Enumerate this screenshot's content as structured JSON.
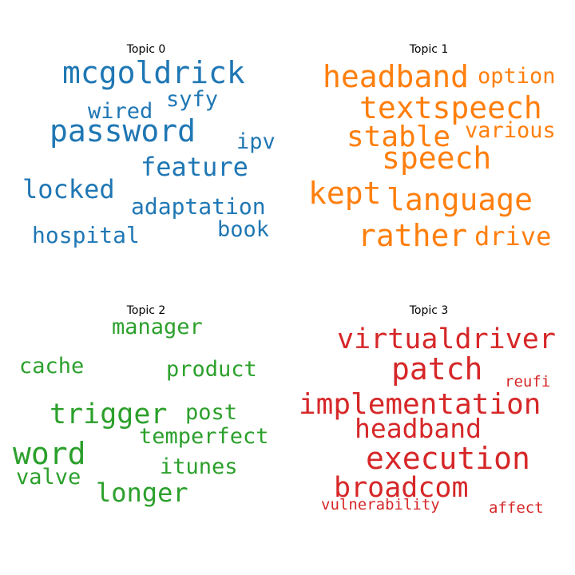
{
  "chart_data": [
    {
      "type": "wordcloud",
      "title": "Topic 0",
      "color": "#1f77b4",
      "words": [
        {
          "text": "mcgoldrick",
          "weight": 0.88
        },
        {
          "text": "password",
          "weight": 0.92
        },
        {
          "text": "syfy",
          "weight": 0.62
        },
        {
          "text": "wired",
          "weight": 0.65
        },
        {
          "text": "feature",
          "weight": 0.72
        },
        {
          "text": "ipv",
          "weight": 0.6
        },
        {
          "text": "locked",
          "weight": 0.72
        },
        {
          "text": "adaptation",
          "weight": 0.66
        },
        {
          "text": "hospital",
          "weight": 0.65
        },
        {
          "text": "book",
          "weight": 0.6
        }
      ]
    },
    {
      "type": "wordcloud",
      "title": "Topic 1",
      "color": "#ff7f0e",
      "words": [
        {
          "text": "headband",
          "weight": 0.88
        },
        {
          "text": "option",
          "weight": 0.62
        },
        {
          "text": "textspeech",
          "weight": 0.88
        },
        {
          "text": "stable",
          "weight": 0.85
        },
        {
          "text": "various",
          "weight": 0.6
        },
        {
          "text": "speech",
          "weight": 0.9
        },
        {
          "text": "kept",
          "weight": 0.88
        },
        {
          "text": "language",
          "weight": 0.9
        },
        {
          "text": "rather",
          "weight": 0.88
        },
        {
          "text": "drive",
          "weight": 0.75
        }
      ]
    },
    {
      "type": "wordcloud",
      "title": "Topic 2",
      "color": "#2ca02c",
      "words": [
        {
          "text": "manager",
          "weight": 0.6
        },
        {
          "text": "cache",
          "weight": 0.6
        },
        {
          "text": "product",
          "weight": 0.62
        },
        {
          "text": "trigger",
          "weight": 0.8
        },
        {
          "text": "post",
          "weight": 0.62
        },
        {
          "text": "temperfect",
          "weight": 0.6
        },
        {
          "text": "word",
          "weight": 0.92
        },
        {
          "text": "itunes",
          "weight": 0.62
        },
        {
          "text": "valve",
          "weight": 0.6
        },
        {
          "text": "longer",
          "weight": 0.74
        }
      ]
    },
    {
      "type": "wordcloud",
      "title": "Topic 3",
      "color": "#d62728",
      "words": [
        {
          "text": "virtualdriver",
          "weight": 0.8
        },
        {
          "text": "patch",
          "weight": 0.88
        },
        {
          "text": "reufi",
          "weight": 0.45
        },
        {
          "text": "implementation",
          "weight": 0.85
        },
        {
          "text": "headband",
          "weight": 0.77
        },
        {
          "text": "execution",
          "weight": 0.9
        },
        {
          "text": "broadcom",
          "weight": 0.8
        },
        {
          "text": "vulnerability",
          "weight": 0.45
        },
        {
          "text": "affect",
          "weight": 0.47
        }
      ]
    }
  ]
}
